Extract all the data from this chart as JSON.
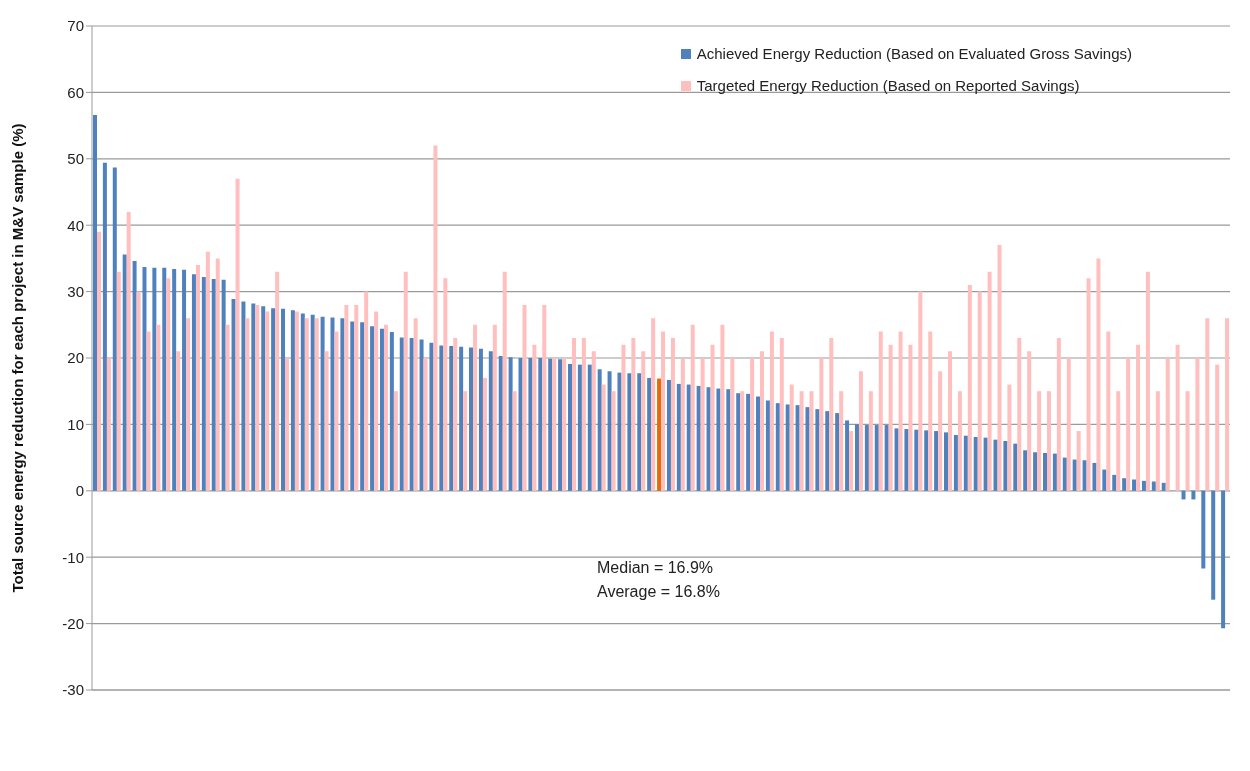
{
  "chart_data": {
    "type": "bar",
    "ylabel": "Total source energy reduction for each project in M&V sample (%)",
    "categories": [
      null,
      null,
      null,
      null,
      null,
      null,
      null,
      null,
      null,
      null,
      null,
      null,
      null,
      null,
      null,
      null,
      null,
      null,
      null,
      null,
      null,
      null,
      null,
      null,
      null,
      null,
      null,
      null,
      null,
      null,
      null,
      null,
      null,
      null,
      null,
      null,
      null,
      null,
      null,
      null,
      null,
      null,
      null,
      null,
      null,
      null,
      null,
      null,
      null,
      null,
      null,
      null,
      null,
      null,
      null,
      null,
      null,
      null,
      null,
      null,
      null,
      null,
      null,
      null,
      null,
      null,
      null,
      null,
      null,
      null,
      null,
      null,
      null,
      null,
      null,
      null,
      null,
      null,
      null,
      null,
      null,
      null,
      null,
      null,
      null,
      null,
      null,
      null,
      null,
      null,
      null,
      null,
      null,
      null,
      null,
      null,
      null,
      null,
      null,
      null,
      null,
      null,
      null,
      null,
      null,
      null,
      null,
      null,
      null,
      null,
      null,
      null,
      null,
      null,
      null
    ],
    "series": [
      {
        "name": "Achieved Energy Reduction (Based on Evaluated Gross Savings)",
        "color": "#4f81bd",
        "colors": [
          "#4f81bd",
          "#4f81bd",
          "#4f81bd",
          "#4f81bd",
          "#4f81bd",
          "#4f81bd",
          "#4f81bd",
          "#4f81bd",
          "#4f81bd",
          "#4f81bd",
          "#4f81bd",
          "#4f81bd",
          "#4f81bd",
          "#4f81bd",
          "#4f81bd",
          "#4f81bd",
          "#4f81bd",
          "#4f81bd",
          "#4f81bd",
          "#4f81bd",
          "#4f81bd",
          "#4f81bd",
          "#4f81bd",
          "#4f81bd",
          "#4f81bd",
          "#4f81bd",
          "#4f81bd",
          "#4f81bd",
          "#4f81bd",
          "#4f81bd",
          "#4f81bd",
          "#4f81bd",
          "#4f81bd",
          "#4f81bd",
          "#4f81bd",
          "#4f81bd",
          "#4f81bd",
          "#4f81bd",
          "#4f81bd",
          "#4f81bd",
          "#4f81bd",
          "#4f81bd",
          "#4f81bd",
          "#4f81bd",
          "#4f81bd",
          "#4f81bd",
          "#4f81bd",
          "#4f81bd",
          "#4f81bd",
          "#4f81bd",
          "#4f81bd",
          "#4f81bd",
          "#4f81bd",
          "#4f81bd",
          "#4f81bd",
          "#4f81bd",
          "#4f81bd",
          "#e36c09",
          "#4f81bd",
          "#4f81bd",
          "#4f81bd",
          "#4f81bd",
          "#4f81bd",
          "#4f81bd",
          "#4f81bd",
          "#4f81bd",
          "#4f81bd",
          "#4f81bd",
          "#4f81bd",
          "#4f81bd",
          "#4f81bd",
          "#4f81bd",
          "#4f81bd",
          "#4f81bd",
          "#4f81bd",
          "#4f81bd",
          "#4f81bd",
          "#4f81bd",
          "#4f81bd",
          "#4f81bd",
          "#4f81bd",
          "#4f81bd",
          "#4f81bd",
          "#4f81bd",
          "#4f81bd",
          "#4f81bd",
          "#4f81bd",
          "#4f81bd",
          "#4f81bd",
          "#4f81bd",
          "#4f81bd",
          "#4f81bd",
          "#4f81bd",
          "#4f81bd",
          "#4f81bd",
          "#4f81bd",
          "#4f81bd",
          "#4f81bd",
          "#4f81bd",
          "#4f81bd",
          "#4f81bd",
          "#4f81bd",
          "#4f81bd",
          "#4f81bd",
          "#4f81bd",
          "#4f81bd",
          "#4f81bd",
          "#4f81bd",
          "#4f81bd",
          "#4f81bd",
          "#4f81bd",
          "#4f81bd",
          "#4f81bd",
          "#4f81bd",
          "#4f81bd"
        ],
        "values": [
          56.6,
          49.4,
          48.7,
          35.6,
          34.6,
          33.7,
          33.6,
          33.6,
          33.4,
          33.3,
          32.6,
          32.2,
          31.9,
          31.8,
          28.9,
          28.5,
          28.2,
          27.8,
          27.5,
          27.4,
          27.2,
          26.7,
          26.5,
          26.2,
          26.1,
          26.0,
          25.5,
          25.4,
          24.8,
          24.4,
          23.9,
          23.1,
          23.0,
          22.8,
          22.3,
          21.9,
          21.8,
          21.7,
          21.6,
          21.4,
          21.0,
          20.3,
          20.1,
          20.0,
          20.0,
          20.0,
          19.9,
          19.8,
          19.1,
          19.0,
          19.0,
          18.3,
          18.0,
          17.8,
          17.7,
          17.7,
          17.0,
          16.9,
          16.7,
          16.1,
          16.0,
          15.8,
          15.6,
          15.4,
          15.3,
          14.7,
          14.6,
          14.2,
          13.6,
          13.2,
          13.0,
          12.9,
          12.6,
          12.3,
          12.0,
          11.7,
          10.6,
          10.0,
          9.9,
          9.9,
          9.9,
          9.4,
          9.3,
          9.2,
          9.1,
          9.0,
          8.8,
          8.4,
          8.3,
          8.1,
          8.0,
          7.7,
          7.5,
          7.1,
          6.1,
          5.8,
          5.7,
          5.6,
          5.0,
          4.7,
          4.6,
          4.2,
          3.2,
          2.4,
          1.9,
          1.7,
          1.5,
          1.4,
          1.2,
          0,
          -1.3,
          -1.3,
          -11.7,
          -16.4,
          -20.7
        ]
      },
      {
        "name": "Targeted Energy Reduction (Based on Reported Savings)",
        "color": "#ffbfbf",
        "values": [
          39,
          20,
          33,
          42,
          30,
          24,
          25,
          32,
          21,
          26,
          34,
          36,
          35,
          25,
          47,
          26,
          28,
          27,
          33,
          20,
          27,
          26,
          26,
          21,
          24,
          28,
          28,
          30,
          27,
          25,
          15,
          33,
          26,
          20,
          52,
          32,
          23,
          15,
          25,
          17,
          25,
          33,
          15,
          28,
          22,
          28,
          20,
          20,
          23,
          23,
          21,
          16,
          15,
          22,
          23,
          21,
          26,
          24,
          23,
          20,
          25,
          20,
          22,
          25,
          20,
          15,
          20,
          21,
          24,
          23,
          16,
          15,
          15,
          20,
          23,
          15,
          9,
          18,
          15,
          24,
          22,
          24,
          22,
          30,
          24,
          18,
          21,
          15,
          31,
          30,
          33,
          37,
          16,
          23,
          21,
          15,
          15,
          23,
          20,
          9,
          32,
          35,
          24,
          15,
          20,
          22,
          33,
          15,
          20,
          22,
          15,
          20,
          26,
          19,
          26
        ]
      }
    ],
    "ylim": [
      -30,
      70
    ],
    "yticks": [
      -30,
      -20,
      -10,
      0,
      10,
      20,
      30,
      40,
      50,
      60,
      70
    ],
    "grid": "y",
    "legend": "top right",
    "tick_labels": "y",
    "annotations": [
      "Median = 16.9%",
      "Average = 16.8%"
    ]
  }
}
